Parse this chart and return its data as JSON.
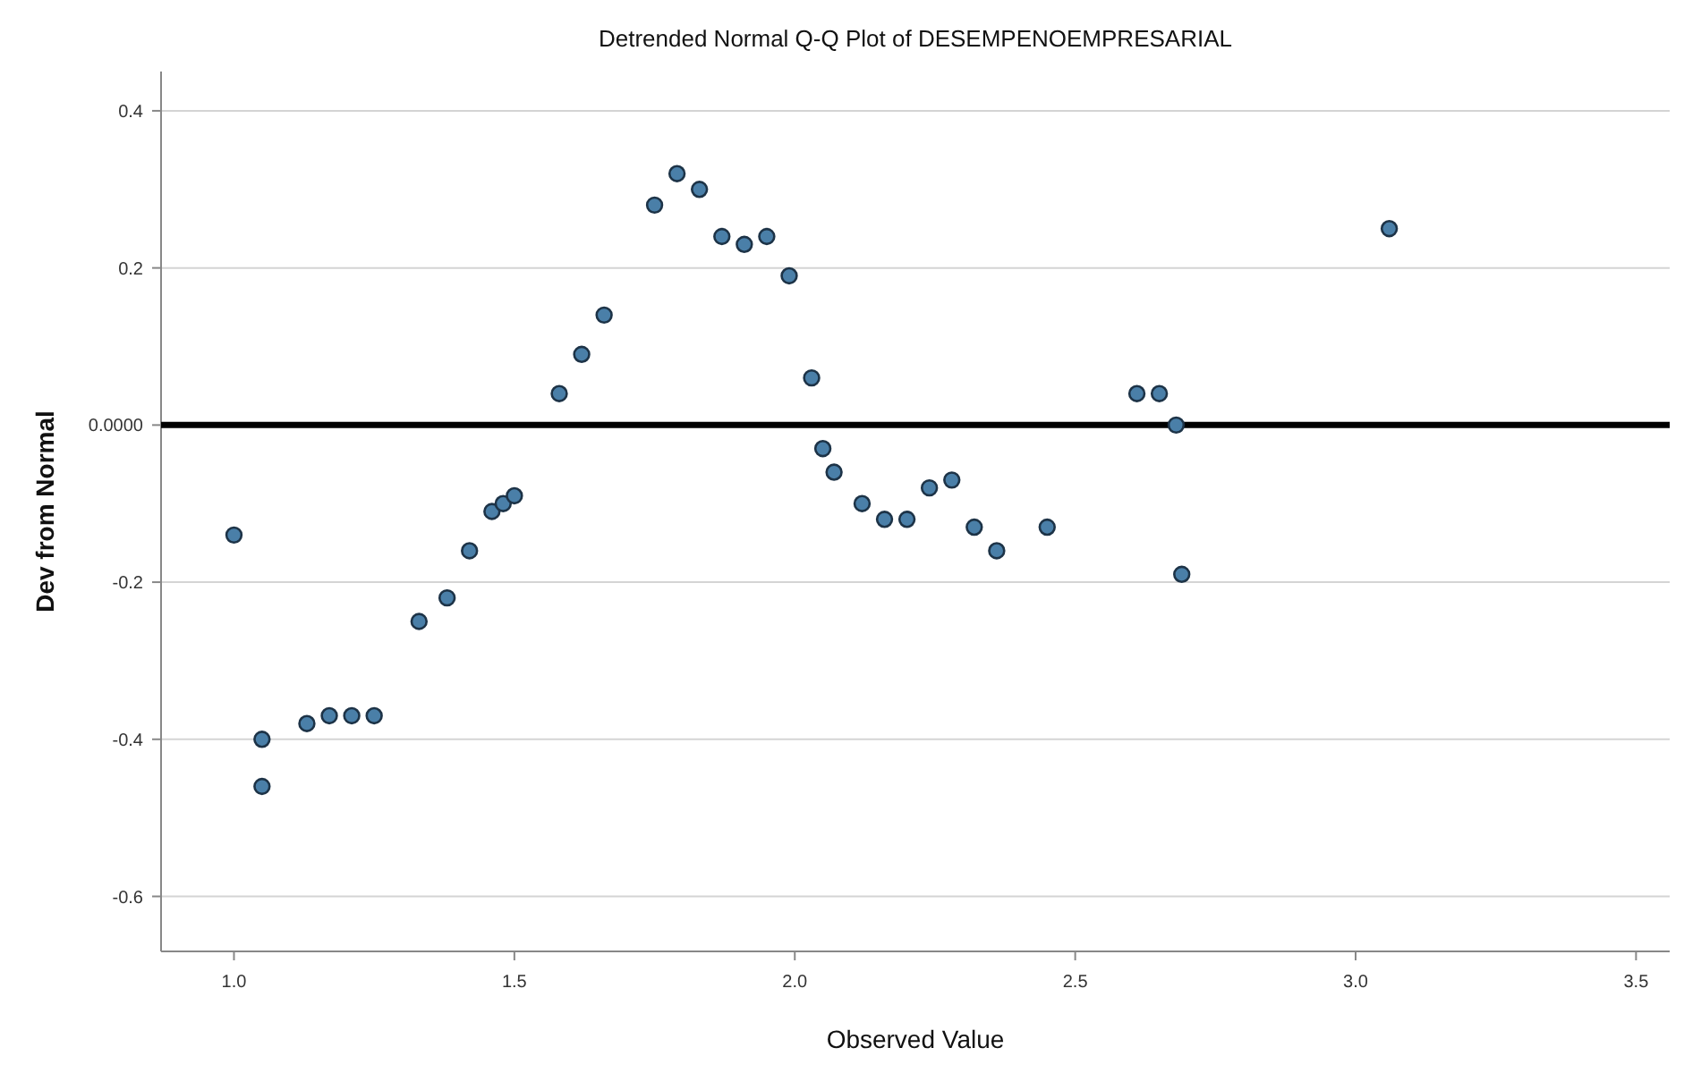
{
  "chart_data": {
    "type": "scatter",
    "title": "Detrended Normal Q-Q Plot of DESEMPENOEMPRESARIAL",
    "xlabel": "Observed Value",
    "ylabel": "Dev from Normal",
    "x": [
      1.0,
      1.05,
      1.05,
      1.13,
      1.17,
      1.21,
      1.25,
      1.33,
      1.38,
      1.42,
      1.46,
      1.48,
      1.5,
      1.58,
      1.62,
      1.66,
      1.75,
      1.79,
      1.83,
      1.87,
      1.91,
      1.95,
      1.99,
      2.03,
      2.05,
      2.07,
      2.12,
      2.16,
      2.2,
      2.24,
      2.28,
      2.32,
      2.36,
      2.45,
      2.61,
      2.65,
      2.68,
      2.69,
      3.06
    ],
    "series": [
      {
        "color": "#4a7fa8",
        "values": [
          -0.14,
          -0.4,
          -0.46,
          -0.38,
          -0.37,
          -0.37,
          -0.37,
          -0.25,
          -0.22,
          -0.16,
          -0.11,
          -0.1,
          -0.09,
          0.04,
          0.09,
          0.14,
          0.28,
          0.32,
          0.3,
          0.24,
          0.23,
          0.24,
          0.19,
          0.06,
          -0.03,
          -0.06,
          -0.1,
          -0.12,
          -0.12,
          -0.08,
          -0.07,
          -0.13,
          -0.16,
          -0.13,
          0.04,
          0.04,
          0,
          -0.19,
          0.25
        ]
      }
    ],
    "xlim": [
      0.87,
      3.56
    ],
    "ylim": [
      -0.67,
      0.45
    ],
    "xticks": [
      {
        "value": 1,
        "label": "1.0"
      },
      {
        "value": 1.5,
        "label": "1.5"
      },
      {
        "value": 2,
        "label": "2.0"
      },
      {
        "value": 2.5,
        "label": "2.5"
      },
      {
        "value": 3,
        "label": "3.0"
      },
      {
        "value": 3.5,
        "label": "3.5"
      }
    ],
    "yticks": [
      {
        "value": -0.6,
        "label": "-0.6"
      },
      {
        "value": -0.4,
        "label": "-0.4"
      },
      {
        "value": -0.2,
        "label": "-0.2"
      },
      {
        "value": 0,
        "label": "0.0000"
      },
      {
        "value": 0.2,
        "label": "0.2"
      },
      {
        "value": 0.4,
        "label": "0.4"
      }
    ],
    "grid": "y",
    "marker": "circle",
    "ref_lines": [
      {
        "axis": "y",
        "value": 0,
        "color": "#000000"
      }
    ]
  }
}
